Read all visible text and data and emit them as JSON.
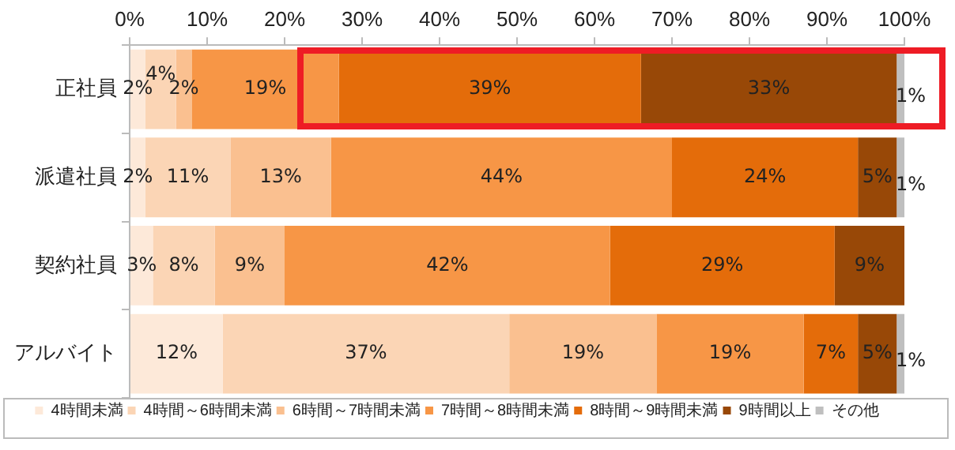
{
  "chart_data": {
    "type": "bar",
    "orientation": "horizontal",
    "stacked": true,
    "legend": "bottom",
    "categories": [
      "正社員",
      "派遣社員",
      "契約社員",
      "アルバイト"
    ],
    "xlim": [
      0,
      100
    ],
    "xticks": [
      {
        "value": 0,
        "label": "0%"
      },
      {
        "value": 10,
        "label": "10%"
      },
      {
        "value": 20,
        "label": "20%"
      },
      {
        "value": 30,
        "label": "30%"
      },
      {
        "value": 40,
        "label": "40%"
      },
      {
        "value": 50,
        "label": "50%"
      },
      {
        "value": 60,
        "label": "60%"
      },
      {
        "value": 70,
        "label": "70%"
      },
      {
        "value": 80,
        "label": "80%"
      },
      {
        "value": 90,
        "label": "90%"
      },
      {
        "value": 100,
        "label": "100%"
      }
    ],
    "series": [
      {
        "name": "4時間未満",
        "color": "#fde9d9",
        "values": [
          2,
          2,
          3,
          12
        ],
        "value_labels": [
          "2%",
          "2%",
          "3%",
          "12%"
        ]
      },
      {
        "name": "4時間～6時間未満",
        "color": "#fbd5b5",
        "values": [
          4,
          11,
          8,
          37
        ],
        "value_labels": [
          "4%",
          "11%",
          "8%",
          "37%"
        ]
      },
      {
        "name": "6時間～7時間未満",
        "color": "#fac090",
        "values": [
          2,
          13,
          9,
          19
        ],
        "value_labels": [
          "2%",
          "13%",
          "9%",
          "19%"
        ]
      },
      {
        "name": "7時間～8時間未満",
        "color": "#f79646",
        "values": [
          19,
          44,
          42,
          19
        ],
        "value_labels": [
          "19%",
          "44%",
          "42%",
          "19%"
        ]
      },
      {
        "name": "8時間～9時間未満",
        "color": "#e46c0a",
        "values": [
          39,
          24,
          29,
          7
        ],
        "value_labels": [
          "39%",
          "24%",
          "29%",
          "7%"
        ]
      },
      {
        "name": "9時間以上",
        "color": "#984807",
        "values": [
          33,
          5,
          9,
          5
        ],
        "value_labels": [
          "33%",
          "5%",
          "9%",
          "5%"
        ]
      },
      {
        "name": "その他",
        "color": "#bfbfbf",
        "values": [
          1,
          1,
          null,
          1
        ],
        "value_labels": [
          "1%",
          "1%",
          null,
          "1%"
        ]
      }
    ]
  }
}
